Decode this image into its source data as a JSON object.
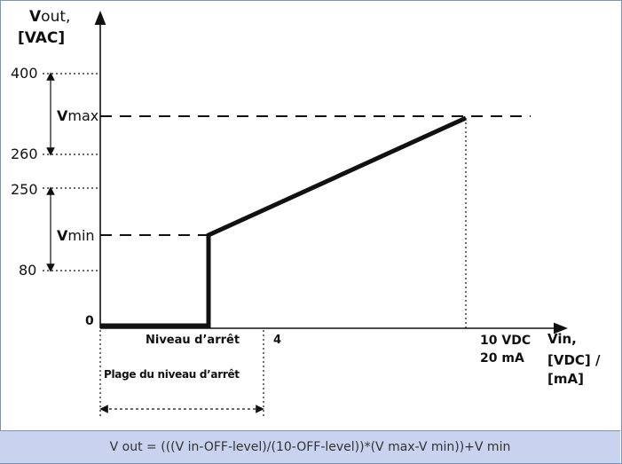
{
  "y_axis": {
    "label_bold": "V",
    "label_rest": "out,",
    "unit": "[VAC]"
  },
  "x_axis": {
    "label_line1": "Vin,",
    "label_line2": "[VDC] /",
    "label_line3": "[mA]"
  },
  "y_ticks": [
    "400",
    "260",
    "250",
    "80",
    "0"
  ],
  "vmax": {
    "bold": "V",
    "rest": "max"
  },
  "vmin": {
    "bold": "V",
    "rest": "min"
  },
  "off_level_label": "Niveau d’arrêt",
  "x_tick_4": "4",
  "x_end_line1": "10 VDC",
  "x_end_line2": "20 mA",
  "off_range_label": "Plage du niveau d’arrêt",
  "formula": "V out = (((V in-OFF-level)/(10-OFF-level))*(V max-V min))+V min",
  "colors": {
    "caption_bg": "#c9d2ee",
    "border": "#7f93b3",
    "line": "#111111"
  }
}
